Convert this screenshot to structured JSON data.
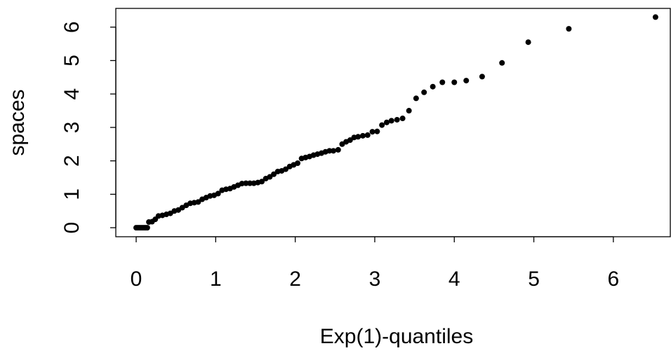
{
  "chart_data": {
    "type": "scatter",
    "x_label": "Exp(1)-quantiles",
    "y_label": "spaces",
    "color": "#000000",
    "xlim": [
      -0.256,
      6.716
    ],
    "ylim": [
      -0.27,
      6.56
    ],
    "xticks": [
      0,
      1,
      2,
      3,
      4,
      5,
      6
    ],
    "yticks": [
      0,
      1,
      2,
      3,
      4,
      5,
      6
    ],
    "x": [
      0.0,
      0.02,
      0.04,
      0.06,
      0.08,
      0.1,
      0.12,
      0.14,
      0.16,
      0.2,
      0.24,
      0.28,
      0.33,
      0.38,
      0.43,
      0.48,
      0.53,
      0.58,
      0.63,
      0.68,
      0.73,
      0.78,
      0.83,
      0.88,
      0.93,
      0.98,
      1.03,
      1.08,
      1.13,
      1.18,
      1.23,
      1.28,
      1.33,
      1.38,
      1.43,
      1.48,
      1.53,
      1.58,
      1.63,
      1.68,
      1.73,
      1.78,
      1.83,
      1.88,
      1.93,
      1.98,
      2.03,
      2.08,
      2.13,
      2.18,
      2.23,
      2.28,
      2.33,
      2.38,
      2.43,
      2.48,
      2.54,
      2.59,
      2.64,
      2.69,
      2.74,
      2.79,
      2.85,
      2.91,
      2.97,
      3.03,
      3.09,
      3.15,
      3.21,
      3.28,
      3.35,
      3.43,
      3.52,
      3.62,
      3.73,
      3.85,
      4.0,
      4.15,
      4.35,
      4.6,
      4.93,
      5.44,
      6.53
    ],
    "values": [
      0,
      0,
      0,
      0,
      0,
      0,
      0,
      0,
      0.17,
      0.18,
      0.25,
      0.35,
      0.37,
      0.4,
      0.43,
      0.5,
      0.53,
      0.6,
      0.67,
      0.73,
      0.75,
      0.77,
      0.85,
      0.9,
      0.95,
      0.97,
      1.02,
      1.12,
      1.15,
      1.17,
      1.22,
      1.27,
      1.32,
      1.33,
      1.33,
      1.33,
      1.35,
      1.38,
      1.47,
      1.52,
      1.6,
      1.68,
      1.7,
      1.75,
      1.83,
      1.88,
      1.93,
      2.07,
      2.1,
      2.13,
      2.17,
      2.2,
      2.23,
      2.27,
      2.3,
      2.3,
      2.33,
      2.5,
      2.57,
      2.62,
      2.7,
      2.72,
      2.75,
      2.77,
      2.87,
      2.88,
      3.07,
      3.15,
      3.2,
      3.23,
      3.27,
      3.5,
      3.87,
      4.05,
      4.22,
      4.35,
      4.35,
      4.4,
      4.52,
      4.93,
      5.55,
      5.95,
      6.3
    ]
  }
}
